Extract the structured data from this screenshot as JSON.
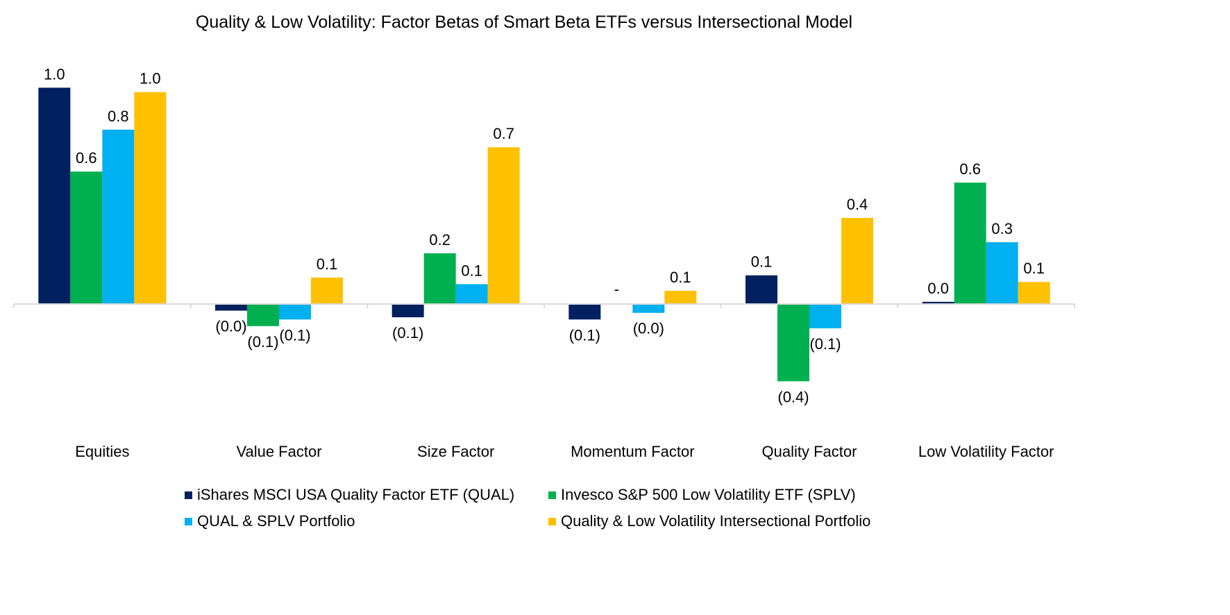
{
  "chart_data": {
    "type": "bar",
    "title": "Quality & Low Volatility: Factor Betas of Smart Beta ETFs versus Intersectional Model",
    "xlabel": "",
    "ylabel": "",
    "ylim": [
      -0.6,
      1.1
    ],
    "grid": false,
    "legend_position": "bottom",
    "categories": [
      "Equities",
      "Value Factor",
      "Size Factor",
      "Momentum Factor",
      "Quality Factor",
      "Low Volatility Factor"
    ],
    "series": [
      {
        "name": "iShares MSCI USA Quality Factor ETF (QUAL)",
        "color": "#002060",
        "values": [
          0.98,
          -0.03,
          -0.06,
          -0.07,
          0.13,
          0.01
        ],
        "labels": [
          "1.0",
          "(0.0)",
          "(0.1)",
          "(0.1)",
          "0.1",
          "0.0"
        ]
      },
      {
        "name": "Invesco S&P 500 Low Volatility ETF (SPLV)",
        "color": "#00B050",
        "values": [
          0.6,
          -0.1,
          0.23,
          0.0,
          -0.35,
          0.55
        ],
        "labels": [
          "0.6",
          "(0.1)",
          "0.2",
          "-",
          "(0.4)",
          "0.6"
        ]
      },
      {
        "name": "QUAL & SPLV Portfolio",
        "color": "#00B0F0",
        "values": [
          0.79,
          -0.07,
          0.09,
          -0.04,
          -0.11,
          0.28
        ],
        "labels": [
          "0.8",
          "(0.1)",
          "0.1",
          "(0.0)",
          "(0.1)",
          "0.3"
        ]
      },
      {
        "name": "Quality & Low Volatility Intersectional Portfolio",
        "color": "#FFC000",
        "values": [
          0.96,
          0.12,
          0.71,
          0.06,
          0.39,
          0.1
        ],
        "labels": [
          "1.0",
          "0.1",
          "0.7",
          "0.1",
          "0.4",
          "0.1"
        ]
      }
    ]
  }
}
